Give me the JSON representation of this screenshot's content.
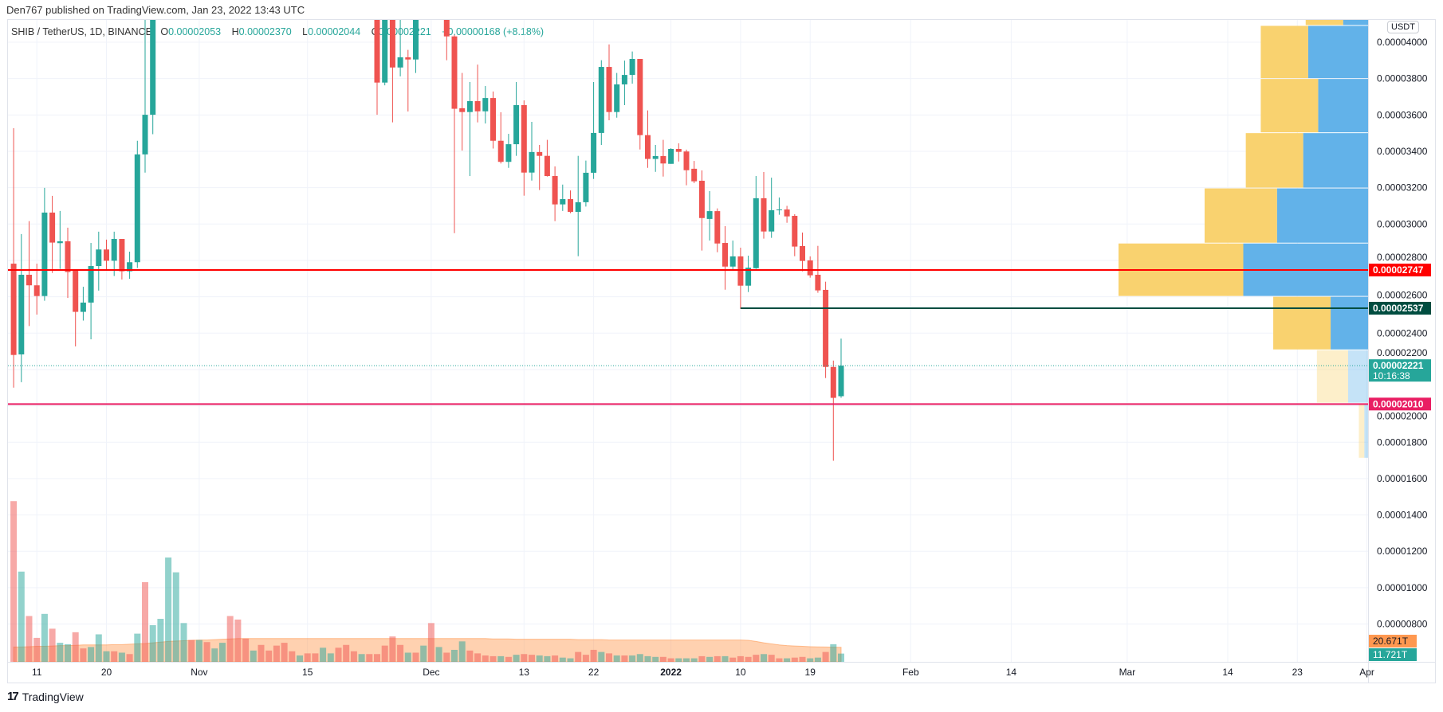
{
  "header": {
    "publish_line": "Den767 published on TradingView.com, Jan 23, 2022 13:43 UTC",
    "symbol": "SHIB / TetherUS, 1D, BINANCE",
    "o_label": "O",
    "o_value": "0.00002053",
    "h_label": "H",
    "h_value": "0.00002370",
    "l_label": "L",
    "l_value": "0.00002044",
    "c_label": "C",
    "c_value": "0.00002221",
    "change": "+0.00000168 (+8.18%)"
  },
  "currency_badge": "USDT",
  "footer": {
    "brand": "TradingView",
    "logo_icon": "tradingview-logo-icon"
  },
  "colors": {
    "up": "#26a69a",
    "down": "#ef5350",
    "resistance": "#ff0000",
    "support_mid": "#004d40",
    "support_low": "#e91e63",
    "profile_up": "#5aaee8",
    "profile_down": "#f9d067",
    "volume_ma": "#ff9850"
  },
  "price_axis": {
    "unit": "1e-6",
    "labels": [
      "0.00004000",
      "0.00003800",
      "0.00003600",
      "0.00003400",
      "0.00003200",
      "0.00003000",
      "0.00002800",
      "0.00002600",
      "0.00002400",
      "0.00002200",
      "0.00002000",
      "0.00001800",
      "0.00001600",
      "0.00001400",
      "0.00001200",
      "0.00001000",
      "0.00000800"
    ]
  },
  "time_axis": [
    {
      "label": "11",
      "offset": -104
    },
    {
      "label": "20",
      "offset": -95
    },
    {
      "label": "Nov",
      "offset": -83
    },
    {
      "label": "15",
      "offset": -69
    },
    {
      "label": "Dec",
      "offset": -53
    },
    {
      "label": "13",
      "offset": -41
    },
    {
      "label": "22",
      "offset": -32
    },
    {
      "label": "2022",
      "offset": -22
    },
    {
      "label": "10",
      "offset": -13
    },
    {
      "label": "19",
      "offset": -4
    },
    {
      "label": "Feb",
      "offset": 9
    },
    {
      "label": "14",
      "offset": 22
    },
    {
      "label": "Mar",
      "offset": 37
    },
    {
      "label": "14",
      "offset": 50
    },
    {
      "label": "23",
      "offset": 59
    },
    {
      "label": "Apr",
      "offset": 68
    }
  ],
  "levels": [
    {
      "name": "resistance-line",
      "price": 27.47,
      "label": "0.00002747",
      "color": "#ff0000",
      "style": "solid",
      "from_offset": null
    },
    {
      "name": "support-line-mid",
      "price": 25.37,
      "label": "0.00002537",
      "color": "#004d40",
      "style": "solid",
      "from_offset": -13
    },
    {
      "name": "current-price-line",
      "price": 22.21,
      "label": "0.00002221",
      "sublabel": "10:16:38",
      "color": "#26a69a",
      "style": "dotted",
      "from_offset": null
    },
    {
      "name": "support-line-low",
      "price": 20.1,
      "label": "0.00002010",
      "color": "#e91e63",
      "style": "solid",
      "from_offset": null
    }
  ],
  "volume_labels": [
    {
      "name": "volume-ma-label",
      "value": 20.671,
      "label": "20.671T",
      "color": "#ff9850"
    },
    {
      "name": "volume-last-label",
      "value": 11.721,
      "label": "11.721T",
      "color": "#26a69a"
    }
  ],
  "chart_data": {
    "type": "candlestick",
    "price_unit": "1e-6 USDT",
    "ylim": [
      8,
      40
    ],
    "candles_ohlc": [
      [
        27.82,
        35.27,
        21.0,
        22.8
      ],
      [
        22.83,
        29.45,
        21.3,
        27.21
      ],
      [
        27.21,
        30.16,
        24.39,
        26.63
      ],
      [
        26.63,
        27.82,
        25.02,
        26.04
      ],
      [
        26.04,
        31.99,
        25.78,
        30.63
      ],
      [
        30.63,
        31.55,
        27.31,
        28.98
      ],
      [
        28.95,
        30.72,
        27.53,
        29.05
      ],
      [
        29.05,
        29.8,
        25.94,
        27.36
      ],
      [
        27.46,
        27.5,
        23.27,
        25.17
      ],
      [
        25.17,
        26.55,
        24.69,
        25.68
      ],
      [
        25.68,
        28.96,
        23.66,
        27.69
      ],
      [
        27.69,
        29.58,
        26.34,
        28.6
      ],
      [
        28.6,
        29.14,
        27.5,
        27.98
      ],
      [
        27.98,
        29.58,
        27.14,
        29.18
      ],
      [
        29.18,
        29.18,
        26.95,
        27.4
      ],
      [
        27.4,
        28.48,
        26.99,
        27.9
      ],
      [
        27.9,
        34.58,
        27.58,
        33.83
      ],
      [
        33.83,
        null,
        32.83,
        36.01
      ],
      [
        36.01,
        null,
        34.94,
        null
      ],
      null,
      null,
      null,
      null,
      null,
      null,
      null,
      null,
      null,
      null,
      null,
      null,
      null,
      null,
      null,
      null,
      null,
      null,
      null,
      null,
      null,
      null,
      null,
      null,
      null,
      null,
      null,
      null,
      [
        null,
        null,
        36.01,
        37.78
      ],
      [
        37.78,
        null,
        37.63,
        null
      ],
      [
        null,
        null,
        35.59,
        38.61
      ],
      [
        38.61,
        null,
        38.12,
        39.17
      ],
      [
        39.17,
        39.58,
        36.19,
        39.05
      ],
      [
        39.05,
        null,
        38.31,
        null
      ],
      null,
      null,
      null,
      [
        null,
        null,
        39.01,
        40.32
      ],
      [
        40.32,
        40.4,
        29.5,
        36.34
      ],
      [
        36.37,
        38.31,
        34.04,
        36.16
      ],
      [
        36.16,
        37.81,
        32.64,
        36.76
      ],
      [
        36.76,
        38.77,
        35.59,
        36.2
      ],
      [
        36.2,
        37.59,
        35.53,
        36.93
      ],
      [
        36.93,
        37.29,
        34.15,
        34.58
      ],
      [
        34.58,
        36.15,
        33.33,
        33.42
      ],
      [
        33.42,
        34.96,
        33.09,
        34.39
      ],
      [
        34.39,
        37.81,
        33.75,
        36.54
      ],
      [
        36.54,
        36.8,
        31.56,
        32.83
      ],
      [
        32.83,
        35.62,
        32.39,
        33.96
      ],
      [
        33.96,
        34.35,
        31.87,
        33.75
      ],
      [
        33.75,
        34.63,
        32.61,
        32.64
      ],
      [
        32.64,
        33.17,
        30.16,
        31.08
      ],
      [
        31.08,
        32.17,
        30.72,
        31.37
      ],
      [
        31.37,
        31.85,
        30.6,
        30.67
      ],
      [
        30.67,
        33.75,
        28.23,
        31.2
      ],
      [
        31.2,
        33.49,
        30.96,
        32.82
      ],
      [
        32.82,
        37.81,
        32.48,
        35.01
      ],
      [
        35.01,
        39.01,
        34.35,
        38.64
      ],
      [
        38.64,
        39.88,
        35.71,
        36.16
      ],
      [
        36.16,
        38.31,
        35.85,
        37.68
      ],
      [
        37.68,
        38.99,
        36.54,
        38.2
      ],
      [
        38.2,
        39.49,
        37.72,
        39.08
      ],
      [
        39.08,
        39.08,
        34.1,
        34.89
      ],
      [
        34.89,
        36.25,
        33.09,
        33.58
      ],
      [
        33.58,
        34.35,
        32.87,
        33.74
      ],
      [
        33.74,
        34.63,
        32.61,
        33.33
      ],
      [
        33.31,
        34.17,
        33.31,
        34.13
      ],
      [
        34.13,
        34.44,
        33.44,
        33.97
      ],
      [
        33.99,
        34.09,
        32.13,
        32.96
      ],
      [
        33.04,
        33.47,
        32.25,
        32.35
      ],
      [
        32.38,
        32.95,
        28.54,
        30.33
      ],
      [
        30.28,
        31.81,
        29.09,
        30.71
      ],
      [
        30.71,
        30.86,
        28.45,
        28.93
      ],
      [
        28.96,
        29.88,
        26.39,
        27.66
      ],
      [
        27.66,
        29.09,
        27.46,
        28.22
      ],
      [
        28.22,
        28.7,
        25.34,
        26.61
      ],
      [
        26.61,
        28.26,
        26.26,
        27.6
      ],
      [
        27.57,
        32.64,
        27.53,
        31.42
      ],
      [
        31.42,
        32.86,
        29.2,
        29.59
      ],
      [
        29.59,
        32.55,
        29.24,
        30.76
      ],
      [
        30.76,
        31.46,
        30.51,
        30.8
      ],
      [
        30.8,
        31.0,
        30.07,
        30.42
      ],
      [
        30.45,
        30.54,
        28.23,
        28.76
      ],
      [
        28.79,
        29.53,
        27.4,
        27.97
      ],
      [
        28.0,
        28.22,
        27.05,
        27.18
      ],
      [
        27.21,
        28.8,
        26.22,
        26.35
      ],
      [
        26.38,
        26.83,
        21.53,
        22.14
      ],
      [
        22.14,
        22.49,
        16.98,
        20.44
      ],
      [
        20.53,
        23.7,
        20.44,
        22.21
      ]
    ],
    "volume_T": [
      228,
      128,
      65,
      34,
      68,
      47,
      27,
      25,
      42,
      19,
      21,
      39,
      15,
      15,
      13,
      11,
      40,
      113,
      52,
      61,
      148,
      127,
      55,
      31,
      31,
      28,
      19,
      27,
      65,
      60,
      33,
      16,
      24,
      16,
      23,
      27,
      15,
      9,
      12,
      12,
      20,
      12,
      20,
      24,
      15,
      11,
      11,
      11,
      23,
      36,
      24,
      13,
      13,
      23,
      55,
      21,
      13,
      17,
      29,
      16,
      12,
      9,
      8,
      8,
      7,
      10,
      11,
      10,
      9,
      8,
      9,
      6,
      5,
      14,
      10,
      17,
      14,
      12,
      9,
      9,
      9,
      11,
      8,
      7,
      7,
      5,
      5,
      5,
      5,
      8,
      7,
      8,
      8,
      6,
      8,
      7,
      10,
      11,
      10,
      5,
      5,
      6,
      7,
      5,
      6,
      14,
      25,
      11.721
    ],
    "volume_dir": "dudduduudduuudududuuuuududuudddudddddudduudddudddddudududuudddd",
    "volume_dir_tail": "ududduuduudddududuuuudduuudududddduddudduuduudddddddu",
    "volume_ma_T": [
      21,
      21,
      21.5,
      22,
      22,
      22.5,
      23,
      23,
      23.5,
      24,
      24,
      24,
      24,
      24.5,
      24.5,
      25,
      25.5,
      26,
      27,
      28,
      29,
      29.5,
      30,
      30.5,
      31,
      31,
      31.5,
      32,
      32.5,
      33,
      33,
      33,
      33,
      33,
      33,
      33,
      33,
      33,
      33,
      33,
      33,
      33,
      33,
      33,
      33,
      33,
      33,
      33,
      33,
      33,
      33,
      33,
      33,
      33,
      33,
      33,
      33,
      33,
      33,
      33,
      33,
      33,
      32.5,
      32.5,
      32.5,
      32,
      32,
      32,
      32,
      32,
      32,
      32,
      32,
      31.5,
      31.5,
      31.5,
      31.5,
      31,
      31,
      31,
      31,
      31,
      31,
      31,
      31,
      31,
      31,
      31,
      31,
      31,
      31,
      31,
      31,
      31,
      31,
      30.5,
      29,
      27,
      25.5,
      24,
      23,
      22.5,
      22,
      21.5,
      21.2,
      21,
      20.8,
      20.671
    ],
    "volume_profile": [
      {
        "low": 40.9,
        "high": 43.9,
        "up": 0.1,
        "down": 0.15
      },
      {
        "low": 37.98,
        "high": 40.9,
        "up": 0.24,
        "down": 0.19
      },
      {
        "low": 35.0,
        "high": 37.98,
        "up": 0.2,
        "down": 0.23
      },
      {
        "low": 31.96,
        "high": 35.0,
        "up": 0.26,
        "down": 0.23
      },
      {
        "low": 28.93,
        "high": 31.96,
        "up": 0.365,
        "down": 0.29
      },
      {
        "low": 26.0,
        "high": 28.93,
        "up": 0.5,
        "down": 0.5
      },
      {
        "low": 23.06,
        "high": 26.0,
        "up": 0.15,
        "down": 0.23
      },
      {
        "low": 20.13,
        "high": 23.06,
        "up": 0.08,
        "down": 0.125,
        "outside_value_area": true
      },
      {
        "low": 17.1,
        "high": 20.13,
        "up": 0.015,
        "down": 0.022,
        "outside_value_area": true
      }
    ]
  }
}
